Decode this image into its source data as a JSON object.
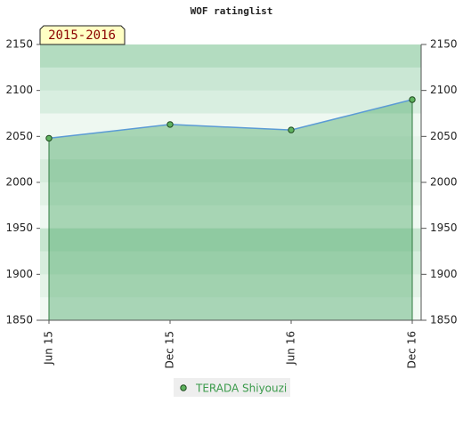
{
  "chart_data": {
    "type": "line",
    "title": "WOF ratinglist",
    "annotation": "2015-2016",
    "categories": [
      "Jun 15",
      "Dec 15",
      "Jun 16",
      "Dec 16"
    ],
    "series": [
      {
        "name": "TERADA Shiyouzi",
        "color": "#5fb35f",
        "values": [
          2048,
          2063,
          2057,
          2090
        ]
      }
    ],
    "ylim": [
      1850,
      2150
    ],
    "yticks": [
      1850,
      1900,
      1950,
      2000,
      2050,
      2100,
      2150
    ],
    "y2lim": [
      1850,
      2150
    ],
    "y2ticks": [
      1850,
      1900,
      1950,
      2000,
      2050,
      2100,
      2150
    ]
  }
}
